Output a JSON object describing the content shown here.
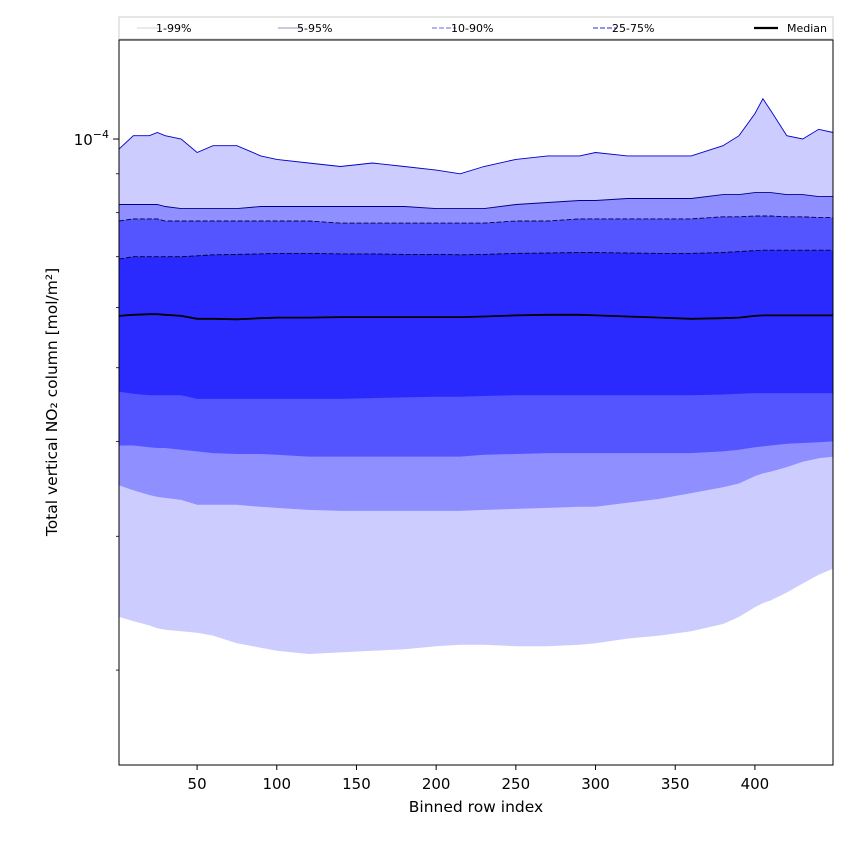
{
  "chart_data": {
    "type": "area",
    "xlabel": "Binned row index",
    "ylabel": "Total vertical NO₂ column [mol/m²]",
    "yscale": "log",
    "xlim": [
      1,
      449
    ],
    "ylim": [
      1.5e-05,
      0.000135
    ],
    "x_ticks": [
      50,
      100,
      150,
      200,
      250,
      300,
      350,
      400
    ],
    "y_major_ticks": [
      {
        "value": 0.0001,
        "label_base": "10",
        "label_exp": "−4"
      }
    ],
    "y_minor_ticks": [
      2e-05,
      3e-05,
      4e-05,
      5e-05,
      6e-05,
      7e-05,
      8e-05,
      9e-05
    ],
    "x": [
      1,
      10,
      20,
      25,
      30,
      40,
      50,
      60,
      75,
      90,
      100,
      120,
      140,
      160,
      180,
      200,
      215,
      230,
      250,
      270,
      290,
      300,
      320,
      340,
      360,
      380,
      390,
      400,
      405,
      410,
      420,
      430,
      440,
      449
    ],
    "bands": [
      {
        "name": "1-99%",
        "color": "#ccccff",
        "line_color": "#0000cc",
        "line_style": "solid",
        "upper": [
          9.7e-05,
          0.000101,
          0.000101,
          0.000102,
          0.000101,
          0.0001,
          9.6e-05,
          9.8e-05,
          9.8e-05,
          9.5e-05,
          9.4e-05,
          9.3e-05,
          9.2e-05,
          9.3e-05,
          9.2e-05,
          9.1e-05,
          9e-05,
          9.2e-05,
          9.4e-05,
          9.5e-05,
          9.5e-05,
          9.6e-05,
          9.5e-05,
          9.5e-05,
          9.5e-05,
          9.8e-05,
          0.000101,
          0.000108,
          0.000113,
          0.000109,
          0.000101,
          0.0001,
          0.000103,
          0.000102
        ],
        "lower": [
          2.35e-05,
          2.32e-05,
          2.29e-05,
          2.27e-05,
          2.26e-05,
          2.25e-05,
          2.24e-05,
          2.22e-05,
          2.17e-05,
          2.14e-05,
          2.12e-05,
          2.1e-05,
          2.11e-05,
          2.12e-05,
          2.13e-05,
          2.15e-05,
          2.16e-05,
          2.16e-05,
          2.15e-05,
          2.15e-05,
          2.16e-05,
          2.17e-05,
          2.2e-05,
          2.22e-05,
          2.25e-05,
          2.3e-05,
          2.35e-05,
          2.42e-05,
          2.45e-05,
          2.47e-05,
          2.53e-05,
          2.6e-05,
          2.67e-05,
          2.72e-05
        ]
      },
      {
        "name": "5-95%",
        "color": "#8f8fff",
        "line_color": "#000088",
        "line_style": "solid",
        "upper": [
          8.2e-05,
          8.2e-05,
          8.2e-05,
          8.2e-05,
          8.15e-05,
          8.1e-05,
          8.1e-05,
          8.1e-05,
          8.1e-05,
          8.15e-05,
          8.15e-05,
          8.15e-05,
          8.15e-05,
          8.15e-05,
          8.15e-05,
          8.1e-05,
          8.1e-05,
          8.1e-05,
          8.2e-05,
          8.25e-05,
          8.3e-05,
          8.3e-05,
          8.35e-05,
          8.35e-05,
          8.35e-05,
          8.45e-05,
          8.45e-05,
          8.5e-05,
          8.5e-05,
          8.5e-05,
          8.45e-05,
          8.45e-05,
          8.4e-05,
          8.4e-05
        ],
        "lower": [
          3.5e-05,
          3.45e-05,
          3.4e-05,
          3.38e-05,
          3.37e-05,
          3.35e-05,
          3.3e-05,
          3.3e-05,
          3.3e-05,
          3.28e-05,
          3.27e-05,
          3.25e-05,
          3.24e-05,
          3.24e-05,
          3.24e-05,
          3.24e-05,
          3.24e-05,
          3.25e-05,
          3.26e-05,
          3.27e-05,
          3.28e-05,
          3.28e-05,
          3.32e-05,
          3.36e-05,
          3.42e-05,
          3.48e-05,
          3.52e-05,
          3.6e-05,
          3.63e-05,
          3.65e-05,
          3.7e-05,
          3.76e-05,
          3.8e-05,
          3.82e-05
        ]
      },
      {
        "name": "10-90%",
        "color": "#5555ff",
        "line_color": "#000044",
        "line_style": "dashed",
        "upper": [
          7.8e-05,
          7.85e-05,
          7.85e-05,
          7.85e-05,
          7.8e-05,
          7.8e-05,
          7.8e-05,
          7.8e-05,
          7.8e-05,
          7.8e-05,
          7.8e-05,
          7.8e-05,
          7.75e-05,
          7.75e-05,
          7.75e-05,
          7.75e-05,
          7.75e-05,
          7.75e-05,
          7.8e-05,
          7.8e-05,
          7.85e-05,
          7.85e-05,
          7.85e-05,
          7.85e-05,
          7.85e-05,
          7.9e-05,
          7.9e-05,
          7.92e-05,
          7.92e-05,
          7.92e-05,
          7.9e-05,
          7.9e-05,
          7.88e-05,
          7.88e-05
        ],
        "lower": [
          3.95e-05,
          3.95e-05,
          3.93e-05,
          3.92e-05,
          3.92e-05,
          3.9e-05,
          3.88e-05,
          3.86e-05,
          3.85e-05,
          3.85e-05,
          3.84e-05,
          3.82e-05,
          3.82e-05,
          3.82e-05,
          3.82e-05,
          3.82e-05,
          3.82e-05,
          3.84e-05,
          3.85e-05,
          3.86e-05,
          3.86e-05,
          3.86e-05,
          3.86e-05,
          3.86e-05,
          3.86e-05,
          3.88e-05,
          3.9e-05,
          3.93e-05,
          3.94e-05,
          3.95e-05,
          3.97e-05,
          3.98e-05,
          3.99e-05,
          4e-05
        ]
      },
      {
        "name": "25-75%",
        "color": "#2a2aff",
        "line_color": "#000022",
        "line_style": "dashed",
        "upper": [
          6.95e-05,
          7e-05,
          7e-05,
          7e-05,
          7e-05,
          7e-05,
          7.02e-05,
          7.04e-05,
          7.05e-05,
          7.06e-05,
          7.07e-05,
          7.07e-05,
          7.06e-05,
          7.06e-05,
          7.05e-05,
          7.05e-05,
          7.04e-05,
          7.05e-05,
          7.07e-05,
          7.08e-05,
          7.09e-05,
          7.09e-05,
          7.08e-05,
          7.07e-05,
          7.07e-05,
          7.09e-05,
          7.11e-05,
          7.13e-05,
          7.14e-05,
          7.14e-05,
          7.14e-05,
          7.14e-05,
          7.14e-05,
          7.14e-05
        ],
        "lower": [
          4.65e-05,
          4.62e-05,
          4.6e-05,
          4.6e-05,
          4.6e-05,
          4.6e-05,
          4.55e-05,
          4.55e-05,
          4.55e-05,
          4.55e-05,
          4.55e-05,
          4.55e-05,
          4.55e-05,
          4.56e-05,
          4.57e-05,
          4.58e-05,
          4.58e-05,
          4.59e-05,
          4.6e-05,
          4.6e-05,
          4.6e-05,
          4.6e-05,
          4.6e-05,
          4.6e-05,
          4.6e-05,
          4.61e-05,
          4.62e-05,
          4.63e-05,
          4.63e-05,
          4.63e-05,
          4.63e-05,
          4.63e-05,
          4.63e-05,
          4.63e-05
        ]
      }
    ],
    "median": {
      "name": "Median",
      "color": "#000000",
      "values": [
        5.85e-05,
        5.87e-05,
        5.88e-05,
        5.88e-05,
        5.87e-05,
        5.85e-05,
        5.8e-05,
        5.8e-05,
        5.79e-05,
        5.81e-05,
        5.82e-05,
        5.82e-05,
        5.83e-05,
        5.83e-05,
        5.83e-05,
        5.83e-05,
        5.83e-05,
        5.84e-05,
        5.86e-05,
        5.87e-05,
        5.87e-05,
        5.86e-05,
        5.84e-05,
        5.82e-05,
        5.8e-05,
        5.81e-05,
        5.82e-05,
        5.85e-05,
        5.86e-05,
        5.86e-05,
        5.86e-05,
        5.86e-05,
        5.86e-05,
        5.86e-05
      ]
    },
    "legend": {
      "placement": "top",
      "entries": [
        {
          "label": "1-99%",
          "color": "#dddddd",
          "style": "solid"
        },
        {
          "label": "5-95%",
          "color": "#aaaacc",
          "style": "solid"
        },
        {
          "label": "10-90%",
          "color": "#8888ee",
          "style": "dashed"
        },
        {
          "label": "25-75%",
          "color": "#5555dd",
          "style": "dashed"
        },
        {
          "label": "Median",
          "color": "#000000",
          "style": "solid"
        }
      ]
    }
  }
}
